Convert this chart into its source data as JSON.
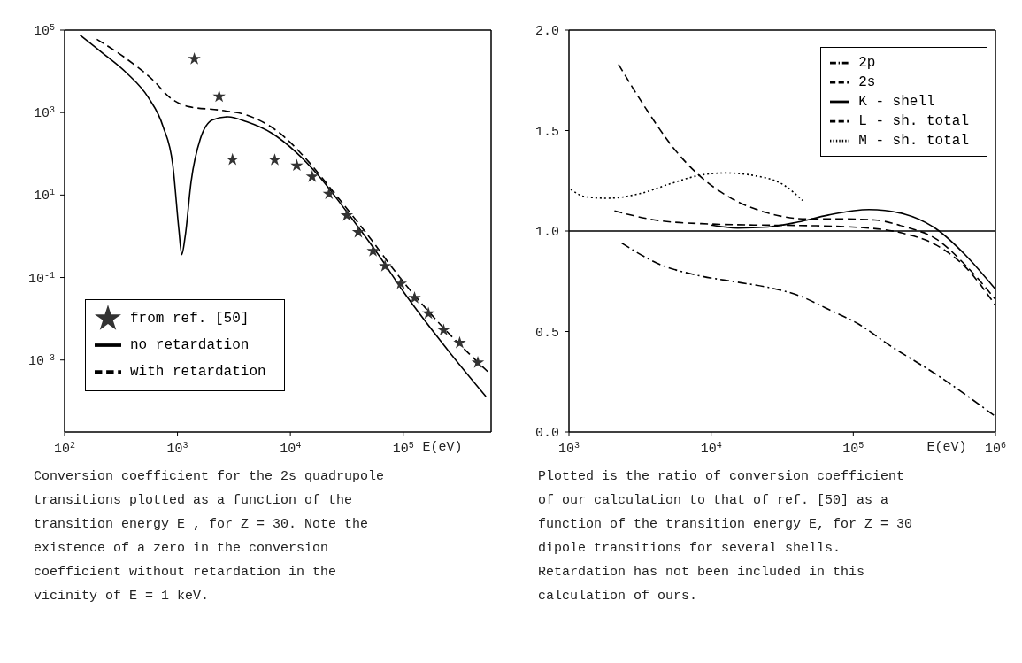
{
  "chart_data": [
    {
      "type": "line",
      "xlabel": "E(eV)",
      "log": "xy",
      "xlim": [
        100,
        600000
      ],
      "ylim": [
        1.8e-05,
        100000
      ],
      "xticks": [
        {
          "value": 100,
          "label": "10$^{2}$"
        },
        {
          "value": 1000,
          "label": "10$^{3}$"
        },
        {
          "value": 10000,
          "label": "10$^{4}$"
        },
        {
          "value": 100000,
          "label": "10$^{5}$"
        }
      ],
      "yticks": [
        {
          "value": 100000,
          "label": "10$^{5}$"
        },
        {
          "value": 1000,
          "label": "10$^{3}$"
        },
        {
          "value": 10,
          "label": "10$^{1}$"
        },
        {
          "value": 0.1,
          "label": "10$^{-1}$"
        },
        {
          "value": 0.001,
          "label": "10$^{-3}$"
        }
      ],
      "legend": "bottom left",
      "annotations": [
        "Conversion coefficient for the 2s quadrupole transitions plotted as a function of the transition energy E , for Z = 30.  Note the existence of a zero in the conversion coefficient without retardation in the vicinity of E = 1 keV."
      ],
      "series": [
        {
          "name": "no retardation",
          "color": "#000000",
          "line_style": "solid",
          "marker": "none",
          "x": [
            137,
            213,
            355,
            550,
            745,
            910,
            1030,
            1090,
            1170,
            1320,
            1590,
            2040,
            2800,
            4100,
            6800,
            11200,
            17500,
            32600,
            61000,
            100000,
            210000,
            540000
          ],
          "values": [
            76000,
            29000,
            9100,
            2350,
            460,
            52,
            1.4,
            0.36,
            1,
            21,
            225,
            660,
            790,
            600,
            320,
            110,
            31,
            3.5,
            0.34,
            0.046,
            0.0031,
            0.00013
          ]
        },
        {
          "name": "with retardation",
          "color": "#000000",
          "line_style": "dashed",
          "marker": "none",
          "x": [
            193,
            355,
            620,
            850,
            1240,
            2470,
            4100,
            7700,
            14600,
            24000,
            45000,
            100000,
            210000,
            570000
          ],
          "values": [
            60000,
            20000,
            5800,
            2350,
            1400,
            1130,
            870,
            350,
            63,
            12,
            1.4,
            0.079,
            0.0076,
            0.0005
          ]
        },
        {
          "name": "from ref. [50]",
          "type": "scatter",
          "color": "#333333",
          "marker": "star",
          "x": [
            1410,
            2340,
            3070,
            7270,
            11400,
            15600,
            22000,
            31600,
            40000,
            54000,
            69000,
            95000,
            126000,
            167000,
            228000,
            316000,
            458000
          ],
          "values": [
            20000,
            2450,
            72,
            71,
            52,
            28,
            10.7,
            3.2,
            1.26,
            0.44,
            0.19,
            0.071,
            0.032,
            0.0135,
            0.0053,
            0.0026,
            0.00087
          ]
        }
      ]
    },
    {
      "type": "line",
      "xlabel": "E(eV)",
      "log": "x",
      "xlim": [
        1000,
        1000000
      ],
      "ylim": [
        0,
        2
      ],
      "xticks": [
        {
          "value": 1000,
          "label": "10$^{3}$"
        },
        {
          "value": 10000,
          "label": "10$^{4}$"
        },
        {
          "value": 100000,
          "label": "10$^{5}$"
        },
        {
          "value": 1000000,
          "label": "10$^{6}$"
        }
      ],
      "yticks": [
        {
          "value": 0,
          "label": "0.0"
        },
        {
          "value": 0.5,
          "label": "0.5"
        },
        {
          "value": 1,
          "label": "1.0"
        },
        {
          "value": 1.5,
          "label": "1.5"
        },
        {
          "value": 2,
          "label": "2.0"
        }
      ],
      "legend": "top right",
      "ref_lines": [
        {
          "axis": "y",
          "value": 1,
          "color": "#000000"
        }
      ],
      "annotations": [
        "Plotted is the ratio of conversion coefficient of our calculation to that of ref. [50] as a function of the transition energy E, for Z = 30 dipole transitions for several shells. Retardation has not been included in this calculation of ours."
      ],
      "series": [
        {
          "name": "K - shell",
          "color": "#000000",
          "line_style": "solid",
          "x": [
            10000,
            15400,
            25000,
            41000,
            67000,
            129000,
            233000,
            384000,
            616000,
            1000000
          ],
          "values": [
            1.03,
            1.015,
            1.02,
            1.045,
            1.08,
            1.107,
            1.083,
            1.01,
            0.88,
            0.71
          ]
        },
        {
          "name": "2s",
          "color": "#000000",
          "line_style": "dashed",
          "x": [
            2230,
            3510,
            5480,
            8140,
            13300,
            25000,
            48000,
            87000,
            141000,
            233000,
            384000,
            616000,
            1000000
          ],
          "values": [
            1.83,
            1.605,
            1.41,
            1.28,
            1.17,
            1.09,
            1.06,
            1.06,
            1.055,
            1.02,
            0.96,
            0.83,
            0.66
          ]
        },
        {
          "name": "2p",
          "color": "#000000",
          "line_style": "dashdot",
          "x": [
            2350,
            4500,
            7400,
            15400,
            25000,
            41000,
            67000,
            110000,
            181000,
            384000,
            1000000
          ],
          "values": [
            0.94,
            0.83,
            0.785,
            0.745,
            0.72,
            0.68,
            0.61,
            0.535,
            0.43,
            0.286,
            0.077
          ]
        },
        {
          "name": "L - sh. total",
          "color": "#000000",
          "line_style": "dashed",
          "x": [
            2090,
            4500,
            9800,
            20000,
            48000,
            110000,
            233000,
            384000,
            616000,
            1000000
          ],
          "values": [
            1.1,
            1.05,
            1.035,
            1.03,
            1.027,
            1.018,
            0.986,
            0.93,
            0.82,
            0.63
          ]
        },
        {
          "name": "M - sh. total",
          "color": "#000000",
          "line_style": "dotted",
          "x": [
            1030,
            1310,
            1850,
            3190,
            5200,
            8140,
            12600,
            20000,
            32600,
            44000
          ],
          "values": [
            1.207,
            1.17,
            1.163,
            1.187,
            1.236,
            1.276,
            1.289,
            1.276,
            1.228,
            1.152
          ]
        }
      ]
    }
  ]
}
